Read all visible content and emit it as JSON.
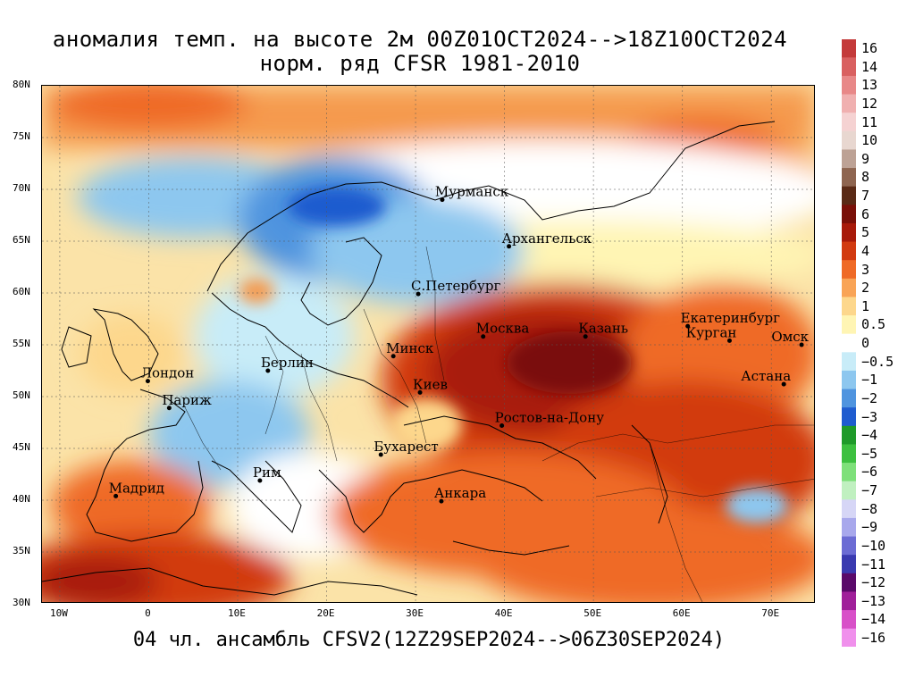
{
  "title": {
    "line1": "аномалия темп. на высоте 2м 00Z01OCT2024-->18Z10OCT2024",
    "line2": "норм. ряд CFSR 1981-2010"
  },
  "footer": "04 чл. ансамбль CFSV2(12Z29SEP2024-->06Z30SEP2024)",
  "map": {
    "lon_range": [
      -12,
      75
    ],
    "lat_range": [
      30,
      80
    ],
    "lat_labels": [
      "30N",
      "35N",
      "40N",
      "45N",
      "50N",
      "55N",
      "60N",
      "65N",
      "70N",
      "75N",
      "80N"
    ],
    "lon_labels": [
      "10W",
      "0",
      "10E",
      "20E",
      "30E",
      "40E",
      "50E",
      "60E",
      "70E"
    ],
    "cities": [
      {
        "name": "Мурманск",
        "lon": 33,
        "lat": 69
      },
      {
        "name": "Архангельск",
        "lon": 40.5,
        "lat": 64.5
      },
      {
        "name": "С.Петербург",
        "lon": 30.3,
        "lat": 59.9
      },
      {
        "name": "Москва",
        "lon": 37.6,
        "lat": 55.8
      },
      {
        "name": "Казань",
        "lon": 49.1,
        "lat": 55.8
      },
      {
        "name": "Екатеринбург",
        "lon": 60.6,
        "lat": 56.8
      },
      {
        "name": "Курган",
        "lon": 65.3,
        "lat": 55.4
      },
      {
        "name": "Омск",
        "lon": 73.4,
        "lat": 55
      },
      {
        "name": "Астана",
        "lon": 71.4,
        "lat": 51.2
      },
      {
        "name": "Минск",
        "lon": 27.5,
        "lat": 53.9
      },
      {
        "name": "Лондон",
        "lon": -0.1,
        "lat": 51.5
      },
      {
        "name": "Париж",
        "lon": 2.3,
        "lat": 48.9
      },
      {
        "name": "Берлин",
        "lon": 13.4,
        "lat": 52.5
      },
      {
        "name": "Киев",
        "lon": 30.5,
        "lat": 50.4
      },
      {
        "name": "Ростов-на-Дону",
        "lon": 39.7,
        "lat": 47.2
      },
      {
        "name": "Бухарест",
        "lon": 26.1,
        "lat": 44.4
      },
      {
        "name": "Мадрид",
        "lon": -3.7,
        "lat": 40.4
      },
      {
        "name": "Рим",
        "lon": 12.5,
        "lat": 41.9
      },
      {
        "name": "Анкара",
        "lon": 32.9,
        "lat": 39.9
      }
    ]
  },
  "colorbar": {
    "labels": [
      "16",
      "14",
      "13",
      "12",
      "11",
      "10",
      "9",
      "8",
      "7",
      "6",
      "5",
      "4",
      "3",
      "2",
      "1",
      "0.5",
      "0",
      "−0.5",
      "−1",
      "−2",
      "−3",
      "−4",
      "−5",
      "−6",
      "−7",
      "−8",
      "−9",
      "−10",
      "−11",
      "−12",
      "−13",
      "−14",
      "−16"
    ],
    "colors": [
      "#c43a3a",
      "#d96060",
      "#e88888",
      "#f0b0b0",
      "#f5d2d2",
      "#e8d7d0",
      "#bda295",
      "#8e6550",
      "#5a2a16",
      "#7a1008",
      "#a81a0a",
      "#d23a10",
      "#ef6a26",
      "#f9a456",
      "#fdd78c",
      "#fff5b4",
      "#ffffff",
      "#c8ecf8",
      "#8dc7ef",
      "#4f94df",
      "#1f5ccf",
      "#1f9a2a",
      "#3dc040",
      "#7ee07a",
      "#c0f0c0",
      "#d6d6f6",
      "#a8a8ec",
      "#6c6cd4",
      "#3a3ab0",
      "#5a0a6a",
      "#a0209a",
      "#d850c8",
      "#f090ec"
    ]
  }
}
